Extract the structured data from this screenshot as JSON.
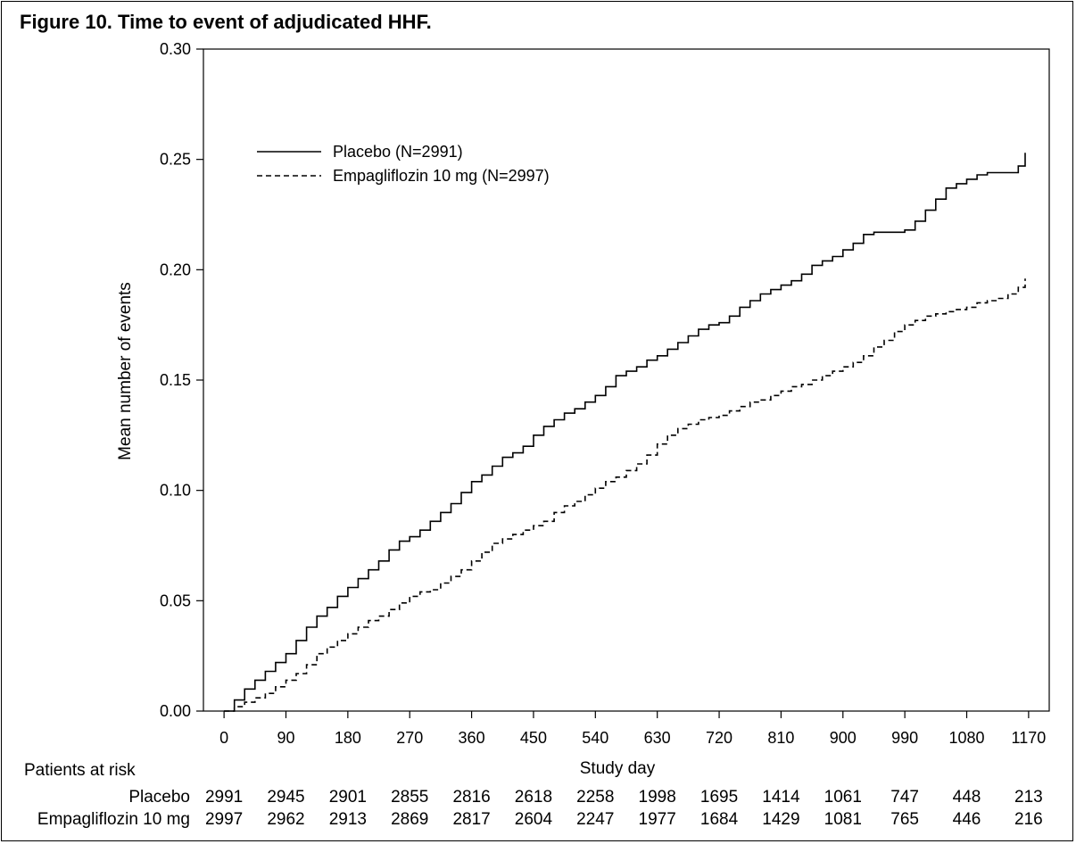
{
  "figure": {
    "title": "Figure 10. Time to event of adjudicated HHF."
  },
  "chart_data": {
    "type": "line",
    "title": "Figure 10. Time to event of adjudicated HHF.",
    "xlabel": "Study day",
    "ylabel": "Mean number of events",
    "xlim": [
      -30,
      1200
    ],
    "ylim": [
      0,
      0.3
    ],
    "x_ticks": [
      0,
      90,
      180,
      270,
      360,
      450,
      540,
      630,
      720,
      810,
      900,
      990,
      1080,
      1170
    ],
    "y_ticks": [
      0.0,
      0.05,
      0.1,
      0.15,
      0.2,
      0.25,
      0.3
    ],
    "y_tick_labels": [
      "0.00",
      "0.05",
      "0.10",
      "0.15",
      "0.20",
      "0.25",
      "0.30"
    ],
    "grid": false,
    "legend_position": "upper-left",
    "series": [
      {
        "name": "Placebo (N=2991)",
        "style": "solid",
        "color": "#000000",
        "x": [
          0,
          15,
          30,
          45,
          60,
          75,
          90,
          105,
          120,
          135,
          150,
          165,
          180,
          195,
          210,
          225,
          240,
          255,
          270,
          285,
          300,
          315,
          330,
          345,
          360,
          375,
          390,
          405,
          420,
          435,
          450,
          465,
          480,
          495,
          510,
          525,
          540,
          555,
          570,
          585,
          600,
          615,
          630,
          645,
          660,
          675,
          690,
          705,
          720,
          735,
          750,
          765,
          780,
          795,
          810,
          825,
          840,
          855,
          870,
          885,
          900,
          915,
          930,
          945,
          960,
          975,
          990,
          1005,
          1020,
          1035,
          1050,
          1065,
          1080,
          1095,
          1110,
          1125,
          1140,
          1155,
          1165
        ],
        "values": [
          0.0,
          0.005,
          0.01,
          0.014,
          0.018,
          0.022,
          0.026,
          0.032,
          0.038,
          0.043,
          0.047,
          0.052,
          0.056,
          0.06,
          0.064,
          0.068,
          0.073,
          0.077,
          0.079,
          0.082,
          0.086,
          0.09,
          0.094,
          0.099,
          0.104,
          0.107,
          0.111,
          0.115,
          0.117,
          0.12,
          0.125,
          0.129,
          0.132,
          0.135,
          0.137,
          0.14,
          0.143,
          0.147,
          0.152,
          0.154,
          0.156,
          0.159,
          0.161,
          0.164,
          0.167,
          0.17,
          0.173,
          0.175,
          0.176,
          0.179,
          0.183,
          0.186,
          0.189,
          0.191,
          0.193,
          0.195,
          0.198,
          0.202,
          0.204,
          0.206,
          0.209,
          0.212,
          0.216,
          0.217,
          0.217,
          0.217,
          0.218,
          0.222,
          0.227,
          0.232,
          0.237,
          0.239,
          0.241,
          0.243,
          0.244,
          0.244,
          0.244,
          0.247,
          0.253
        ]
      },
      {
        "name": "Empagliflozin 10 mg (N=2997)",
        "style": "dashed",
        "color": "#000000",
        "x": [
          0,
          15,
          30,
          45,
          60,
          75,
          90,
          105,
          120,
          135,
          150,
          165,
          180,
          195,
          210,
          225,
          240,
          255,
          270,
          285,
          300,
          315,
          330,
          345,
          360,
          375,
          390,
          405,
          420,
          435,
          450,
          465,
          480,
          495,
          510,
          525,
          540,
          555,
          570,
          585,
          600,
          615,
          630,
          645,
          660,
          675,
          690,
          705,
          720,
          735,
          750,
          765,
          780,
          795,
          810,
          825,
          840,
          855,
          870,
          885,
          900,
          915,
          930,
          945,
          960,
          975,
          990,
          1005,
          1020,
          1035,
          1050,
          1065,
          1080,
          1095,
          1110,
          1125,
          1140,
          1155,
          1165
        ],
        "values": [
          0.0,
          0.002,
          0.004,
          0.006,
          0.008,
          0.011,
          0.014,
          0.017,
          0.021,
          0.026,
          0.029,
          0.032,
          0.035,
          0.038,
          0.041,
          0.043,
          0.046,
          0.049,
          0.052,
          0.054,
          0.055,
          0.058,
          0.061,
          0.064,
          0.068,
          0.072,
          0.076,
          0.078,
          0.08,
          0.082,
          0.084,
          0.086,
          0.09,
          0.093,
          0.095,
          0.098,
          0.101,
          0.104,
          0.106,
          0.109,
          0.112,
          0.116,
          0.121,
          0.125,
          0.128,
          0.13,
          0.132,
          0.133,
          0.134,
          0.136,
          0.138,
          0.14,
          0.141,
          0.143,
          0.145,
          0.147,
          0.148,
          0.15,
          0.152,
          0.154,
          0.156,
          0.158,
          0.161,
          0.165,
          0.168,
          0.172,
          0.175,
          0.177,
          0.179,
          0.18,
          0.181,
          0.182,
          0.183,
          0.185,
          0.186,
          0.187,
          0.189,
          0.192,
          0.196
        ]
      }
    ],
    "at_risk": {
      "header": "Patients at risk",
      "x": [
        0,
        90,
        180,
        270,
        360,
        450,
        540,
        630,
        720,
        810,
        900,
        990,
        1080,
        1170
      ],
      "rows": [
        {
          "label": "Placebo",
          "values": [
            "2991",
            "2945",
            "2901",
            "2855",
            "2816",
            "2618",
            "2258",
            "1998",
            "1695",
            "1414",
            "1061",
            "747",
            "448",
            "213"
          ]
        },
        {
          "label": "Empagliflozin 10 mg",
          "values": [
            "2997",
            "2962",
            "2913",
            "2869",
            "2817",
            "2604",
            "2247",
            "1977",
            "1684",
            "1429",
            "1081",
            "765",
            "446",
            "216"
          ]
        }
      ]
    }
  }
}
